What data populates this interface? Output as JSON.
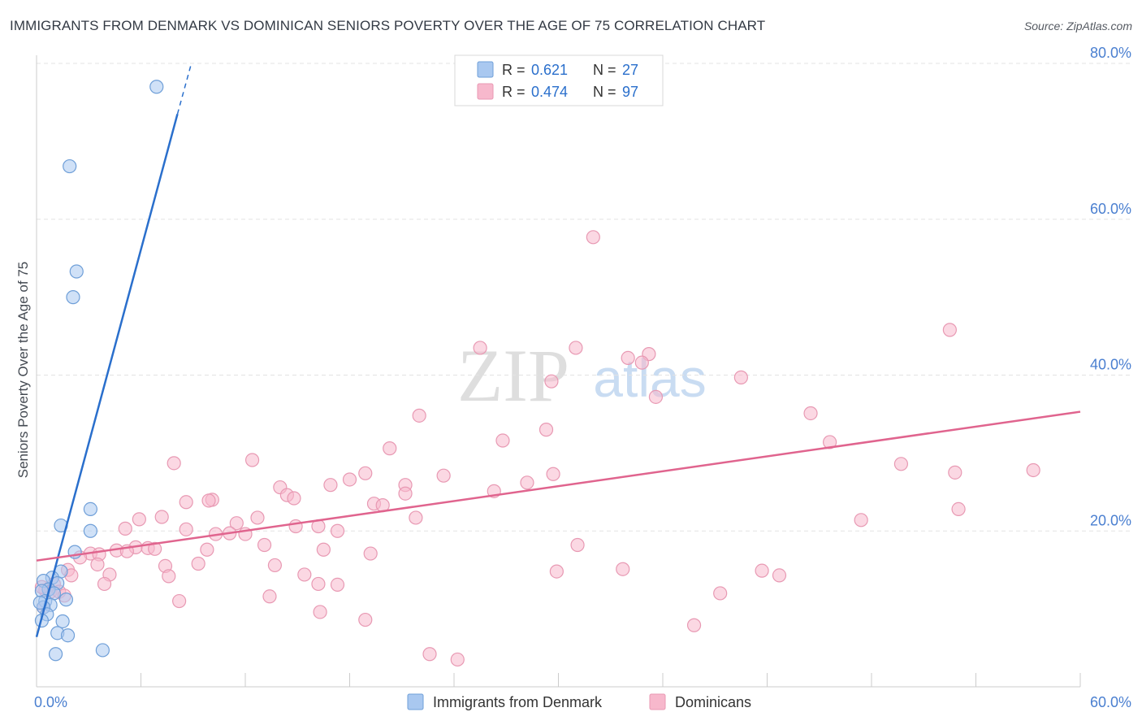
{
  "header": {
    "title": "IMMIGRANTS FROM DENMARK VS DOMINICAN SENIORS POVERTY OVER THE AGE OF 75 CORRELATION CHART",
    "source": "Source: ZipAtlas.com"
  },
  "watermark": {
    "zip": "ZIP",
    "atlas": "atlas"
  },
  "chart_data": {
    "type": "scatter",
    "title": "IMMIGRANTS FROM DENMARK VS DOMINICAN SENIORS POVERTY OVER THE AGE OF 75 CORRELATION CHART",
    "xlabel": "",
    "ylabel": "Seniors Poverty Over the Age of 75",
    "xlim": [
      0,
      60
    ],
    "ylim": [
      0,
      80
    ],
    "x_ticks": [
      0,
      6,
      12,
      18,
      24,
      30,
      36,
      42,
      48,
      54,
      60
    ],
    "x_tick_labels": {
      "left": "0.0%",
      "right": "60.0%"
    },
    "y_ticks": [
      20,
      40,
      60,
      80
    ],
    "y_tick_labels": [
      "20.0%",
      "40.0%",
      "60.0%",
      "80.0%"
    ],
    "grid": true,
    "legend_top": [
      {
        "series": "Immigrants from Denmark",
        "r_label": "R =",
        "r_value": "0.621",
        "n_label": "N =",
        "n_value": "27"
      },
      {
        "series": "Dominicans",
        "r_label": "R =",
        "r_value": "0.474",
        "n_label": "N =",
        "n_value": "97"
      }
    ],
    "legend_bottom": [
      "Immigrants from Denmark",
      "Dominicans"
    ],
    "colors": {
      "denmark_fill": "#a9c8f0",
      "denmark_stroke": "#6f9fd8",
      "denmark_line": "#2a6fcc",
      "dominican_fill": "#f7b8cc",
      "dominican_stroke": "#e899b3",
      "dominican_line": "#e0648e",
      "tick_text": "#4a7fd0",
      "grid": "#e3e3e3",
      "axis": "#cccccc"
    },
    "series": [
      {
        "name": "Immigrants from Denmark",
        "trend": {
          "x0": 0,
          "y0": 6.4,
          "x1": 8.1,
          "y1": 73.5,
          "dash_to_x": 8.9,
          "dash_to_y": 80
        },
        "points": [
          [
            6.9,
            77
          ],
          [
            1.9,
            66.8
          ],
          [
            2.3,
            53.3
          ],
          [
            2.1,
            50
          ],
          [
            3.1,
            22.8
          ],
          [
            3.1,
            20
          ],
          [
            1.4,
            20.7
          ],
          [
            2.2,
            17.3
          ],
          [
            1.4,
            14.8
          ],
          [
            0.9,
            14
          ],
          [
            1.2,
            13.3
          ],
          [
            0.4,
            13.6
          ],
          [
            0.7,
            12.5
          ],
          [
            1.0,
            12
          ],
          [
            0.3,
            12.3
          ],
          [
            0.5,
            11
          ],
          [
            1.7,
            11.2
          ],
          [
            0.8,
            10.5
          ],
          [
            0.4,
            10.2
          ],
          [
            0.6,
            9.3
          ],
          [
            0.3,
            8.5
          ],
          [
            1.5,
            8.4
          ],
          [
            1.2,
            6.9
          ],
          [
            1.8,
            6.6
          ],
          [
            3.8,
            4.7
          ],
          [
            1.1,
            4.2
          ],
          [
            0.2,
            10.8
          ]
        ]
      },
      {
        "name": "Dominicans",
        "trend": {
          "x0": 0,
          "y0": 16.2,
          "x1": 60,
          "y1": 35.3
        },
        "points": [
          [
            32,
            57.7
          ],
          [
            52.5,
            45.8
          ],
          [
            25.5,
            43.5
          ],
          [
            31,
            43.5
          ],
          [
            34,
            42.2
          ],
          [
            35.2,
            42.7
          ],
          [
            34.8,
            41.6
          ],
          [
            40.5,
            39.7
          ],
          [
            29.6,
            39.2
          ],
          [
            35.6,
            37.2
          ],
          [
            44.5,
            35.1
          ],
          [
            22,
            34.8
          ],
          [
            29.3,
            33
          ],
          [
            26.8,
            31.6
          ],
          [
            45.6,
            31.4
          ],
          [
            20.3,
            30.6
          ],
          [
            12.4,
            29.1
          ],
          [
            7.9,
            28.7
          ],
          [
            49.7,
            28.6
          ],
          [
            57.3,
            27.8
          ],
          [
            52.8,
            27.5
          ],
          [
            29.7,
            27.3
          ],
          [
            23.4,
            27.1
          ],
          [
            18.9,
            27.4
          ],
          [
            18,
            26.6
          ],
          [
            16.9,
            25.9
          ],
          [
            28.2,
            26.2
          ],
          [
            21.2,
            25.9
          ],
          [
            14,
            25.6
          ],
          [
            26.3,
            25.1
          ],
          [
            21.2,
            24.8
          ],
          [
            14.4,
            24.6
          ],
          [
            14.8,
            24.2
          ],
          [
            10.1,
            24
          ],
          [
            8.6,
            23.7
          ],
          [
            9.9,
            23.9
          ],
          [
            19.4,
            23.5
          ],
          [
            19.9,
            23.3
          ],
          [
            53,
            22.8
          ],
          [
            7.2,
            21.8
          ],
          [
            5.9,
            21.5
          ],
          [
            12.7,
            21.7
          ],
          [
            21.8,
            21.7
          ],
          [
            47.4,
            21.4
          ],
          [
            11.5,
            21
          ],
          [
            14.9,
            20.6
          ],
          [
            16.2,
            20.6
          ],
          [
            5.1,
            20.3
          ],
          [
            8.6,
            20.2
          ],
          [
            17.3,
            20
          ],
          [
            10.3,
            19.6
          ],
          [
            11.1,
            19.7
          ],
          [
            12,
            19.6
          ],
          [
            31.1,
            18.2
          ],
          [
            13.1,
            18.2
          ],
          [
            5.7,
            17.9
          ],
          [
            6.4,
            17.8
          ],
          [
            6.8,
            17.7
          ],
          [
            9.8,
            17.6
          ],
          [
            16.5,
            17.6
          ],
          [
            4.6,
            17.5
          ],
          [
            5.2,
            17.4
          ],
          [
            3.1,
            17.1
          ],
          [
            3.6,
            17
          ],
          [
            2.5,
            16.6
          ],
          [
            19.2,
            17.1
          ],
          [
            7.4,
            15.5
          ],
          [
            9.3,
            15.8
          ],
          [
            3.5,
            15.7
          ],
          [
            13.7,
            15.6
          ],
          [
            33.7,
            15.1
          ],
          [
            29.9,
            14.8
          ],
          [
            41.7,
            14.9
          ],
          [
            1.8,
            15
          ],
          [
            2.0,
            14.3
          ],
          [
            4.2,
            14.4
          ],
          [
            7.6,
            14.2
          ],
          [
            15.4,
            14.4
          ],
          [
            42.7,
            14.3
          ],
          [
            3.9,
            13.2
          ],
          [
            1.0,
            13.2
          ],
          [
            0.5,
            12.4
          ],
          [
            16.2,
            13.2
          ],
          [
            17.3,
            13.1
          ],
          [
            0.8,
            12.2
          ],
          [
            1.3,
            12.2
          ],
          [
            13.4,
            11.6
          ],
          [
            39.3,
            12
          ],
          [
            8.2,
            11
          ],
          [
            16.3,
            9.6
          ],
          [
            18.9,
            8.6
          ],
          [
            37.8,
            7.9
          ],
          [
            22.6,
            4.2
          ],
          [
            24.2,
            3.5
          ],
          [
            1.6,
            11.7
          ],
          [
            0.4,
            10.2
          ],
          [
            0.3,
            12.8
          ]
        ]
      }
    ]
  }
}
